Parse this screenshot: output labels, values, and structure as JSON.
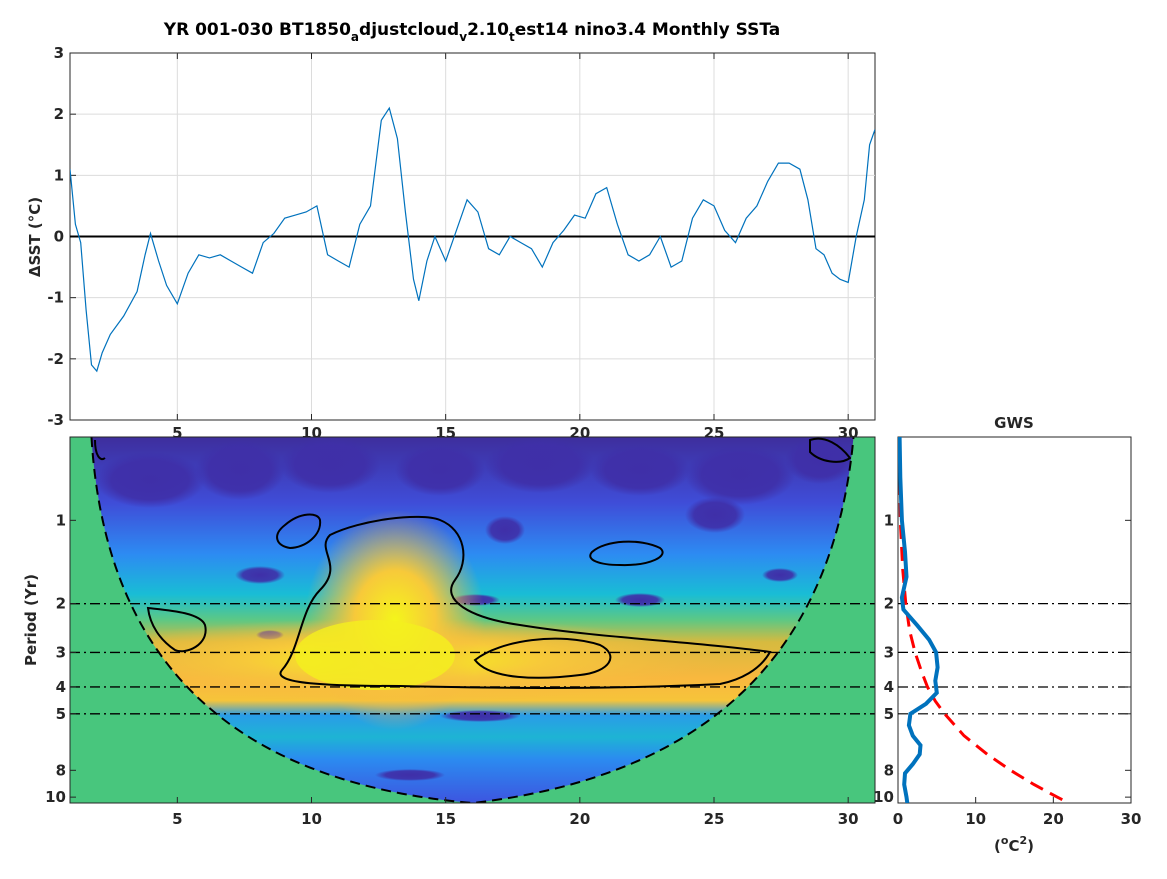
{
  "figure_title": {
    "main": "YR 001-030 BT1850",
    "sub1": "a",
    "mid1": "djustcloud",
    "sub2": "v",
    "mid2": "2.10",
    "sub3": "t",
    "tail": "est14 nino3.4 Monthly SSTa"
  },
  "colors": {
    "series": "#0072BD",
    "cone": "#48C67D",
    "gws": "#0072BD",
    "significance": "#FF0000",
    "axis": "#262626"
  },
  "chart_data": [
    {
      "type": "line",
      "name": "sst-timeseries",
      "title": "",
      "ylabel": "ΔSST (°C)",
      "xlim": [
        1,
        31
      ],
      "ylim": [
        -3,
        3
      ],
      "xticks": [
        5,
        10,
        15,
        20,
        25,
        30
      ],
      "yticks": [
        -3,
        -2,
        -1,
        0,
        1,
        2,
        3
      ],
      "grid": true,
      "zero_line": 0,
      "series": [
        {
          "x": [
            1.0,
            1.2,
            1.4,
            1.6,
            1.8,
            2.0,
            2.2,
            2.5,
            3.0,
            3.5,
            3.8,
            4.0,
            4.3,
            4.6,
            5.0,
            5.4,
            5.8,
            6.2,
            6.6,
            7.0,
            7.4,
            7.8,
            8.2,
            8.6,
            9.0,
            9.4,
            9.8,
            10.2,
            10.6,
            11.0,
            11.4,
            11.8,
            12.2,
            12.6,
            12.9,
            13.2,
            13.5,
            13.8,
            14.0,
            14.3,
            14.6,
            15.0,
            15.4,
            15.8,
            16.2,
            16.6,
            17.0,
            17.4,
            17.8,
            18.2,
            18.6,
            19.0,
            19.4,
            19.8,
            20.2,
            20.6,
            21.0,
            21.4,
            21.8,
            22.2,
            22.6,
            23.0,
            23.4,
            23.8,
            24.2,
            24.6,
            25.0,
            25.4,
            25.8,
            26.2,
            26.6,
            27.0,
            27.4,
            27.8,
            28.2,
            28.5,
            28.8,
            29.1,
            29.4,
            29.7,
            30.0,
            30.3,
            30.6,
            30.8,
            31.0
          ],
          "y": [
            1.1,
            0.2,
            -0.1,
            -1.2,
            -2.1,
            -2.2,
            -1.9,
            -1.6,
            -1.3,
            -0.9,
            -0.3,
            0.05,
            -0.4,
            -0.8,
            -1.1,
            -0.6,
            -0.3,
            -0.35,
            -0.3,
            -0.4,
            -0.5,
            -0.6,
            -0.1,
            0.05,
            0.3,
            0.35,
            0.4,
            0.5,
            -0.3,
            -0.4,
            -0.5,
            0.2,
            0.5,
            1.9,
            2.1,
            1.6,
            0.4,
            -0.7,
            -1.05,
            -0.4,
            0.0,
            -0.4,
            0.1,
            0.6,
            0.4,
            -0.2,
            -0.3,
            0.0,
            -0.1,
            -0.2,
            -0.5,
            -0.1,
            0.1,
            0.35,
            0.3,
            0.7,
            0.8,
            0.2,
            -0.3,
            -0.4,
            -0.3,
            0.0,
            -0.5,
            -0.4,
            0.3,
            0.6,
            0.5,
            0.1,
            -0.1,
            0.3,
            0.5,
            0.9,
            1.2,
            1.2,
            1.1,
            0.6,
            -0.2,
            -0.3,
            -0.6,
            -0.7,
            -0.75,
            0.0,
            0.6,
            1.5,
            1.75
          ]
        }
      ]
    },
    {
      "type": "heatmap",
      "name": "wavelet-power-spectrum",
      "title": "",
      "ylabel": "Period (Yr)",
      "xlim": [
        1,
        31
      ],
      "ylim": [
        0.5,
        10.5
      ],
      "yscale": "log",
      "xticks": [
        5,
        10,
        15,
        20,
        25,
        30
      ],
      "yticks": [
        1,
        2,
        3,
        4,
        5,
        8,
        10
      ],
      "reference_periods": [
        2,
        3,
        4,
        5
      ],
      "colormap": "parula",
      "high_power_region": {
        "center_x": 13.5,
        "center_period": 3.0
      },
      "cone_of_influence": {
        "apex_x": 16,
        "apex_period": 10.5
      }
    },
    {
      "type": "line",
      "name": "global-wavelet-spectrum",
      "title": "GWS",
      "xlabel": "(°C²)",
      "xlabel_parts": {
        "prefix": "(",
        "deg": "o",
        "mid": "C",
        "sup": "2",
        "suffix": ")"
      },
      "xlim": [
        0,
        30
      ],
      "ylim": [
        0.5,
        10.5
      ],
      "yscale": "log",
      "xticks": [
        0,
        10,
        20,
        30
      ],
      "yticks": [
        1,
        2,
        3,
        4,
        5,
        8,
        10
      ],
      "reference_periods": [
        2,
        3,
        4,
        5
      ],
      "series": [
        {
          "style": "solid",
          "period": [
            0.5,
            0.7,
            1.0,
            1.3,
            1.6,
            1.9,
            2.1,
            2.4,
            2.7,
            3.0,
            3.4,
            3.8,
            4.2,
            4.6,
            5.0,
            5.5,
            6.0,
            6.5,
            7.0,
            7.6,
            8.2,
            9.0,
            10.0,
            10.5
          ],
          "power": [
            0.2,
            0.3,
            0.5,
            0.9,
            1.1,
            0.5,
            0.7,
            2.5,
            4.0,
            4.9,
            5.1,
            4.8,
            5.0,
            3.6,
            1.6,
            1.4,
            1.9,
            2.9,
            2.8,
            1.9,
            0.9,
            0.8,
            1.1,
            1.2
          ]
        },
        {
          "style": "dashed",
          "period": [
            0.5,
            1.0,
            1.5,
            2.0,
            2.5,
            3.0,
            3.5,
            4.0,
            4.5,
            5.0,
            6.0,
            7.0,
            8.0,
            9.0,
            10.0,
            10.5
          ],
          "power": [
            0.2,
            0.3,
            0.6,
            1.0,
            1.5,
            2.2,
            3.0,
            3.8,
            4.8,
            6.0,
            8.5,
            11.5,
            14.5,
            17.5,
            20.5,
            22.0
          ]
        }
      ]
    }
  ]
}
